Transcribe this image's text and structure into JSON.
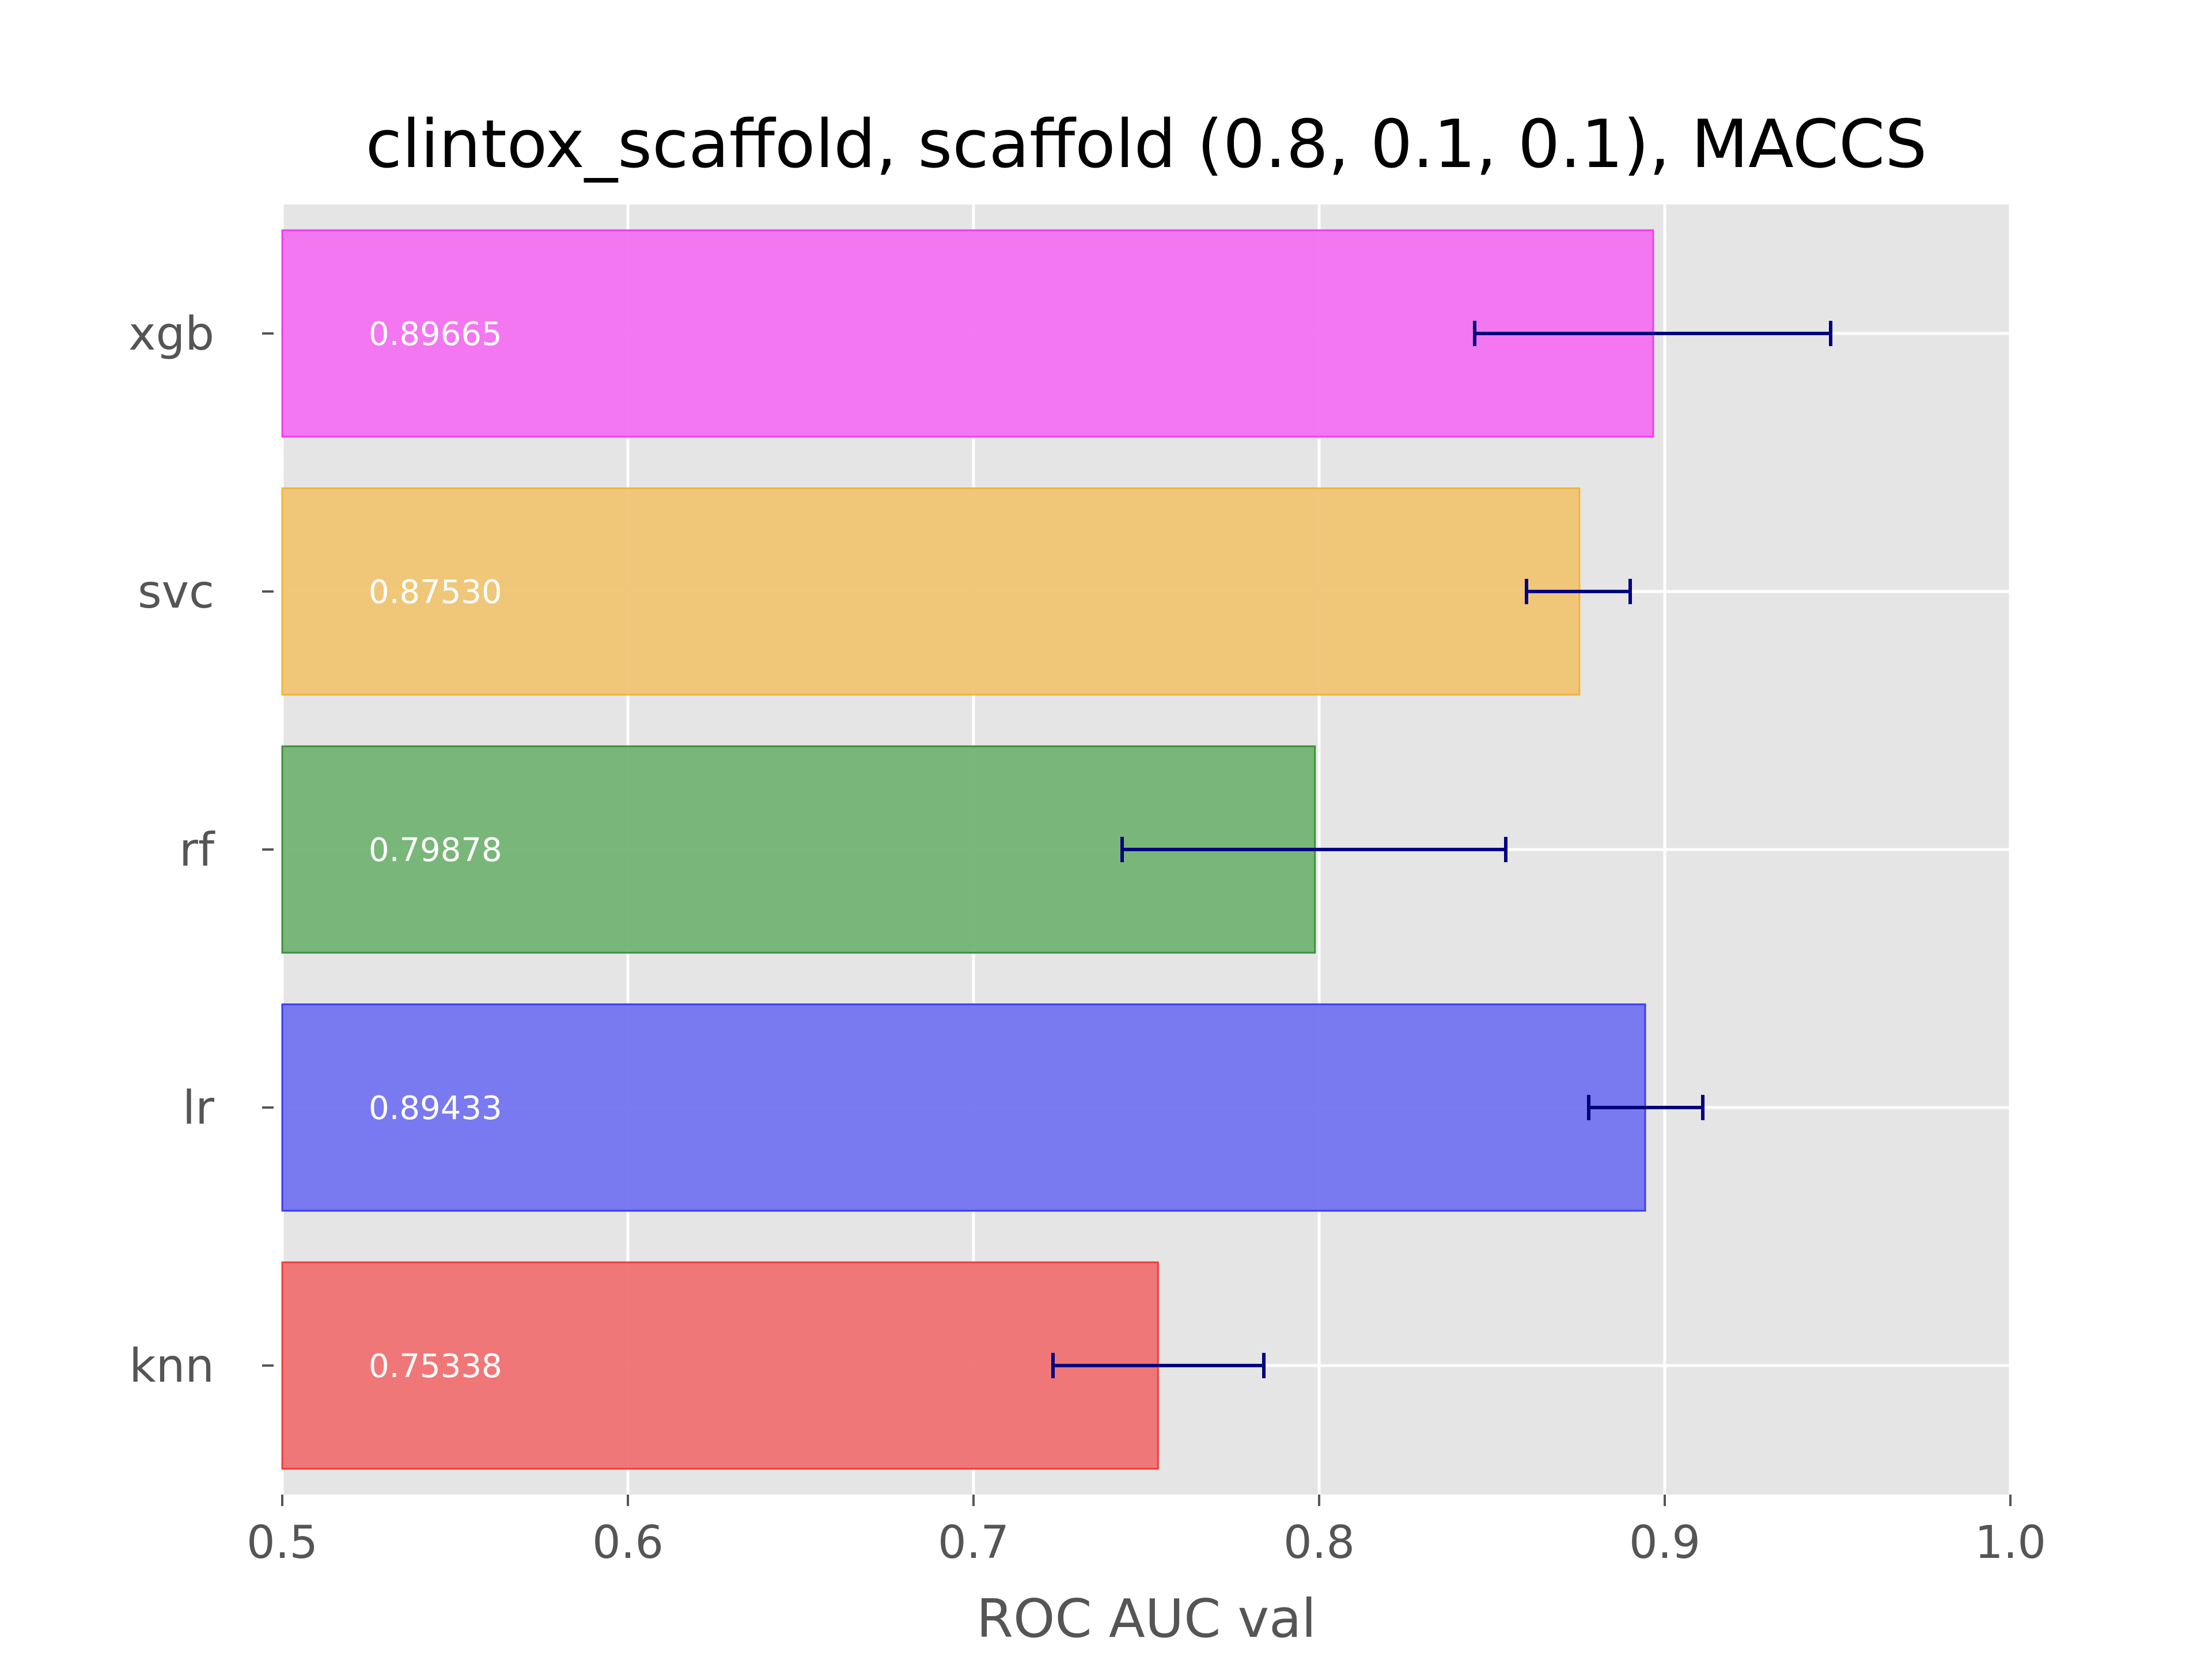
{
  "chart_data": {
    "type": "bar",
    "orientation": "horizontal",
    "title": "clintox_scaffold, scaffold (0.8, 0.1, 0.1), MACCS",
    "xlabel": "ROC AUC val",
    "ylabel": "",
    "xlim": [
      0.5,
      1.0
    ],
    "xticks": [
      0.5,
      0.6,
      0.7,
      0.8,
      0.9,
      1.0
    ],
    "xtick_labels": [
      "0.5",
      "0.6",
      "0.7",
      "0.8",
      "0.9",
      "1.0"
    ],
    "grid": true,
    "categories": [
      "knn",
      "lr",
      "rf",
      "svc",
      "xgb"
    ],
    "values": [
      0.75338,
      0.89433,
      0.79878,
      0.8753,
      0.89665
    ],
    "value_labels": [
      "0.75338",
      "0.89433",
      "0.79878",
      "0.87530",
      "0.89665"
    ],
    "error_low": [
      0.723,
      0.878,
      0.743,
      0.86,
      0.845
    ],
    "error_high": [
      0.784,
      0.911,
      0.854,
      0.89,
      0.948
    ],
    "colors": [
      "#f07171",
      "#7373f0",
      "#73b373",
      "#f0c473",
      "#f271f0"
    ],
    "edge_colors": [
      "#f03c3c",
      "#3c3cf0",
      "#3c913c",
      "#f0b43c",
      "#f03cf0"
    ],
    "error_color": "#000080",
    "background": "#e5e5e5",
    "grid_color": "#ffffff"
  }
}
